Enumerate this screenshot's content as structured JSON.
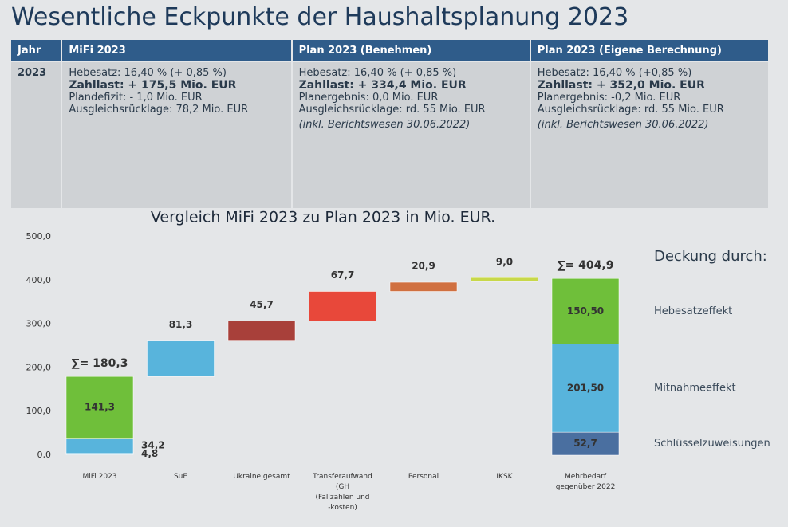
{
  "header": {
    "title": "Wesentliche Eckpunkte der Haushaltsplanung 2023"
  },
  "table": {
    "columns": [
      "Jahr",
      "MiFi 2023",
      "Plan 2023 (Benehmen)",
      "Plan 2023 (Eigene Berechnung)"
    ],
    "rows": [
      [
        "2023",
        [
          "Hebesatz: 16,40 % (+ 0,85 %)",
          "Zahllast: + 175,5 Mio. EUR",
          "Plandefizit: - 1,0 Mio. EUR",
          "Ausgleichsrücklage: 78,2 Mio. EUR"
        ],
        [
          "Hebesatz: 16,40 % (+ 0,85 %)",
          "Zahllast: + 334,4 Mio. EUR",
          "Planergebnis: 0,0 Mio. EUR",
          "Ausgleichsrücklage: rd. 55 Mio. EUR",
          "(inkl. Berichtswesen 30.06.2022)"
        ],
        [
          "Hebesatz: 16,40 % (+0,85 %)",
          "Zahllast: + 352,0 Mio. EUR",
          "Planergebnis: -0,2 Mio. EUR",
          "Ausgleichsrücklage: rd. 55 Mio. EUR",
          "(inkl. Berichtswesen 30.06.2022)"
        ]
      ]
    ]
  },
  "chart_data": {
    "type": "waterfall",
    "title": "Vergleich MiFi 2023 zu Plan 2023 in Mio. EUR.",
    "ylim": [
      0,
      500
    ],
    "yticks": [
      {
        "value": 0,
        "label": "0,0"
      },
      {
        "value": 100,
        "label": "100,0"
      },
      {
        "value": 200,
        "label": "200,0"
      },
      {
        "value": 300,
        "label": "300,0"
      },
      {
        "value": 400,
        "label": "400,0"
      },
      {
        "value": 500,
        "label": "500,0"
      }
    ],
    "categories": [
      "MiFi 2023",
      "SuE",
      "Ukraine gesamt",
      "Transferaufwand\n(GH\n(Fallzahlen und\n-kosten)",
      "Personal",
      "IKSK",
      "Mehrbedarf\ngegenüber 2022"
    ],
    "legend_title": "Deckung durch:",
    "bars": [
      {
        "values": [
          4.8,
          34.2,
          141.3
        ],
        "value_labels": [
          "4,8",
          "34,2",
          "141,3"
        ],
        "colors": [
          "#58b4dc",
          "#58b4dc",
          "#6fbf3a"
        ],
        "sum": 180.3,
        "sum_label": "∑= 180,3"
      },
      {
        "values": [
          81.3
        ],
        "value_labels": [
          "81,3"
        ],
        "colors": [
          "#58b4dc"
        ]
      },
      {
        "values": [
          45.7
        ],
        "value_labels": [
          "45,7"
        ],
        "colors": [
          "#a8403a"
        ]
      },
      {
        "values": [
          67.7
        ],
        "value_labels": [
          "67,7"
        ],
        "colors": [
          "#e8483a"
        ]
      },
      {
        "values": [
          20.9
        ],
        "value_labels": [
          "20,9"
        ],
        "colors": [
          "#d07040"
        ]
      },
      {
        "values": [
          9.0
        ],
        "value_labels": [
          "9,0"
        ],
        "colors": [
          "#c8d84a"
        ]
      },
      {
        "values": [
          52.7,
          201.5,
          150.5
        ],
        "value_labels": [
          "52,7",
          "201,50",
          "150,50"
        ],
        "colors": [
          "#4a6fa0",
          "#58b4dc",
          "#6fbf3a"
        ],
        "names": [
          "Schlüsselzuweisungen",
          "Mitnahmeeffekt",
          "Hebesatzeffekt"
        ],
        "sum": 404.9,
        "sum_label": "∑= 404,9"
      }
    ]
  }
}
